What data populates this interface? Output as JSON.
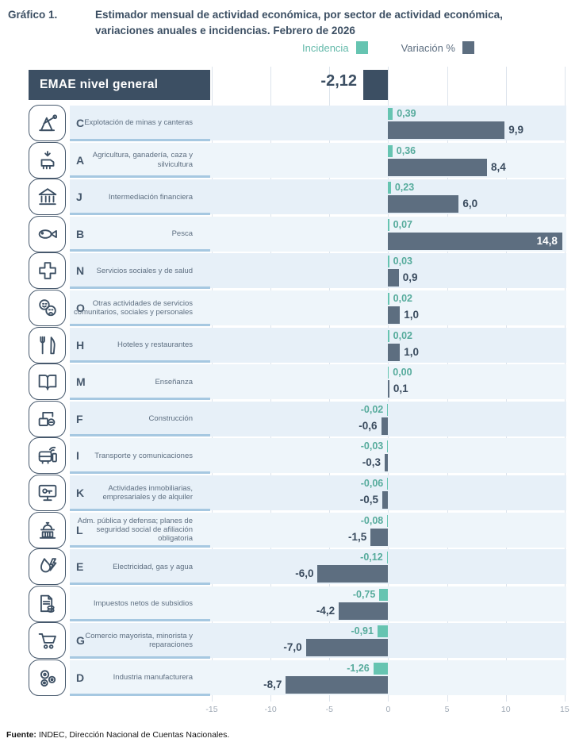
{
  "title": {
    "label": "Gráfico 1.",
    "text": "Estimador mensual de actividad económica, por sector de actividad económica, variaciones anuales e incidencias. Febrero de 2026"
  },
  "legend": {
    "incidencia_label": "Incidencia",
    "variacion_label": "Variación %"
  },
  "colors": {
    "teal": "#66c4b1",
    "teal_text": "#56ab9c",
    "slate_bar": "#5d6e80",
    "dark": "#3c4f63",
    "band_even": "#e7f0f8",
    "band_odd": "#eef5fa",
    "strip_border": "#a6c8e1",
    "grid": "#dde4ec",
    "axis_text": "#9fa9b5"
  },
  "header_row": {
    "label": "EMAE nivel general",
    "value": -2.12,
    "value_label": "-2,12"
  },
  "chart_data": {
    "type": "bar",
    "orientation": "horizontal",
    "title": "Estimador mensual de actividad económica, por sector de actividad económica, variaciones anuales e incidencias. Febrero de 2026",
    "series_names": [
      "Incidencia",
      "Variación %"
    ],
    "x_axis": {
      "range": [
        -15,
        15
      ],
      "ticks": [
        -15,
        -10,
        -5,
        0,
        5,
        10,
        15
      ],
      "tick_labels": [
        "-15",
        "-10",
        "-5",
        "0",
        "5",
        "10",
        "15"
      ],
      "grid": true
    },
    "overall": {
      "label": "EMAE nivel general",
      "variacion": -2.12,
      "variacion_label": "-2,12"
    },
    "rows": [
      {
        "code": "C",
        "sector": "Explotación de minas y canteras",
        "icon": "pumpjack-icon",
        "incidencia": 0.39,
        "incidencia_label": "0,39",
        "variacion": 9.9,
        "variacion_label": "9,9"
      },
      {
        "code": "A",
        "sector": "Agricultura, ganadería, caza y silvicultura",
        "icon": "livestock-icon",
        "incidencia": 0.36,
        "incidencia_label": "0,36",
        "variacion": 8.4,
        "variacion_label": "8,4"
      },
      {
        "code": "J",
        "sector": "Intermediación financiera",
        "icon": "bank-icon",
        "incidencia": 0.23,
        "incidencia_label": "0,23",
        "variacion": 6.0,
        "variacion_label": "6,0"
      },
      {
        "code": "B",
        "sector": "Pesca",
        "icon": "fish-icon",
        "incidencia": 0.07,
        "incidencia_label": "0,07",
        "variacion": 14.8,
        "variacion_label": "14,8"
      },
      {
        "code": "N",
        "sector": "Servicios sociales y de salud",
        "icon": "medical-cross-icon",
        "incidencia": 0.03,
        "incidencia_label": "0,03",
        "variacion": 0.9,
        "variacion_label": "0,9"
      },
      {
        "code": "O",
        "sector": "Otras actividades de servicios comunitarios, sociales y personales",
        "icon": "theater-masks-icon",
        "incidencia": 0.02,
        "incidencia_label": "0,02",
        "variacion": 1.0,
        "variacion_label": "1,0"
      },
      {
        "code": "H",
        "sector": "Hoteles y restaurantes",
        "icon": "restaurant-icon",
        "incidencia": 0.02,
        "incidencia_label": "0,02",
        "variacion": 1.0,
        "variacion_label": "1,0"
      },
      {
        "code": "M",
        "sector": "Enseñanza",
        "icon": "book-icon",
        "incidencia": 0.0,
        "incidencia_label": "0,00",
        "variacion": 0.1,
        "variacion_label": "0,1"
      },
      {
        "code": "F",
        "sector": "Construcción",
        "icon": "crane-icon",
        "incidencia": -0.02,
        "incidencia_label": "-0,02",
        "variacion": -0.6,
        "variacion_label": "-0,6"
      },
      {
        "code": "I",
        "sector": "Transporte y comunicaciones",
        "icon": "bus-icon",
        "incidencia": -0.03,
        "incidencia_label": "-0,03",
        "variacion": -0.3,
        "variacion_label": "-0,3"
      },
      {
        "code": "K",
        "sector": "Actividades inmobiliarias, empresariales y de alquiler",
        "icon": "monitor-key-icon",
        "incidencia": -0.06,
        "incidencia_label": "-0,06",
        "variacion": -0.5,
        "variacion_label": "-0,5"
      },
      {
        "code": "L",
        "sector": "Adm. pública y defensa; planes de seguridad social de afiliación obligatoria",
        "icon": "capitol-icon",
        "incidencia": -0.08,
        "incidencia_label": "-0,08",
        "variacion": -1.5,
        "variacion_label": "-1,5"
      },
      {
        "code": "E",
        "sector": "Electricidad, gas y agua",
        "icon": "utilities-icon",
        "incidencia": -0.12,
        "incidencia_label": "-0,12",
        "variacion": -6.0,
        "variacion_label": "-6,0"
      },
      {
        "code": "",
        "sector": "Impuestos netos de subsidios",
        "icon": "taxes-icon",
        "incidencia": -0.75,
        "incidencia_label": "-0,75",
        "variacion": -4.2,
        "variacion_label": "-4,2"
      },
      {
        "code": "G",
        "sector": "Comercio mayorista, minorista y reparaciones",
        "icon": "cart-icon",
        "incidencia": -0.91,
        "incidencia_label": "-0,91",
        "variacion": -7.0,
        "variacion_label": "-7,0"
      },
      {
        "code": "D",
        "sector": "Industria manufacturera",
        "icon": "gears-icon",
        "incidencia": -1.26,
        "incidencia_label": "-1,26",
        "variacion": -8.7,
        "variacion_label": "-8,7"
      }
    ]
  },
  "footer": {
    "bold": "Fuente:",
    "text": " INDEC, Dirección Nacional de Cuentas Nacionales."
  }
}
